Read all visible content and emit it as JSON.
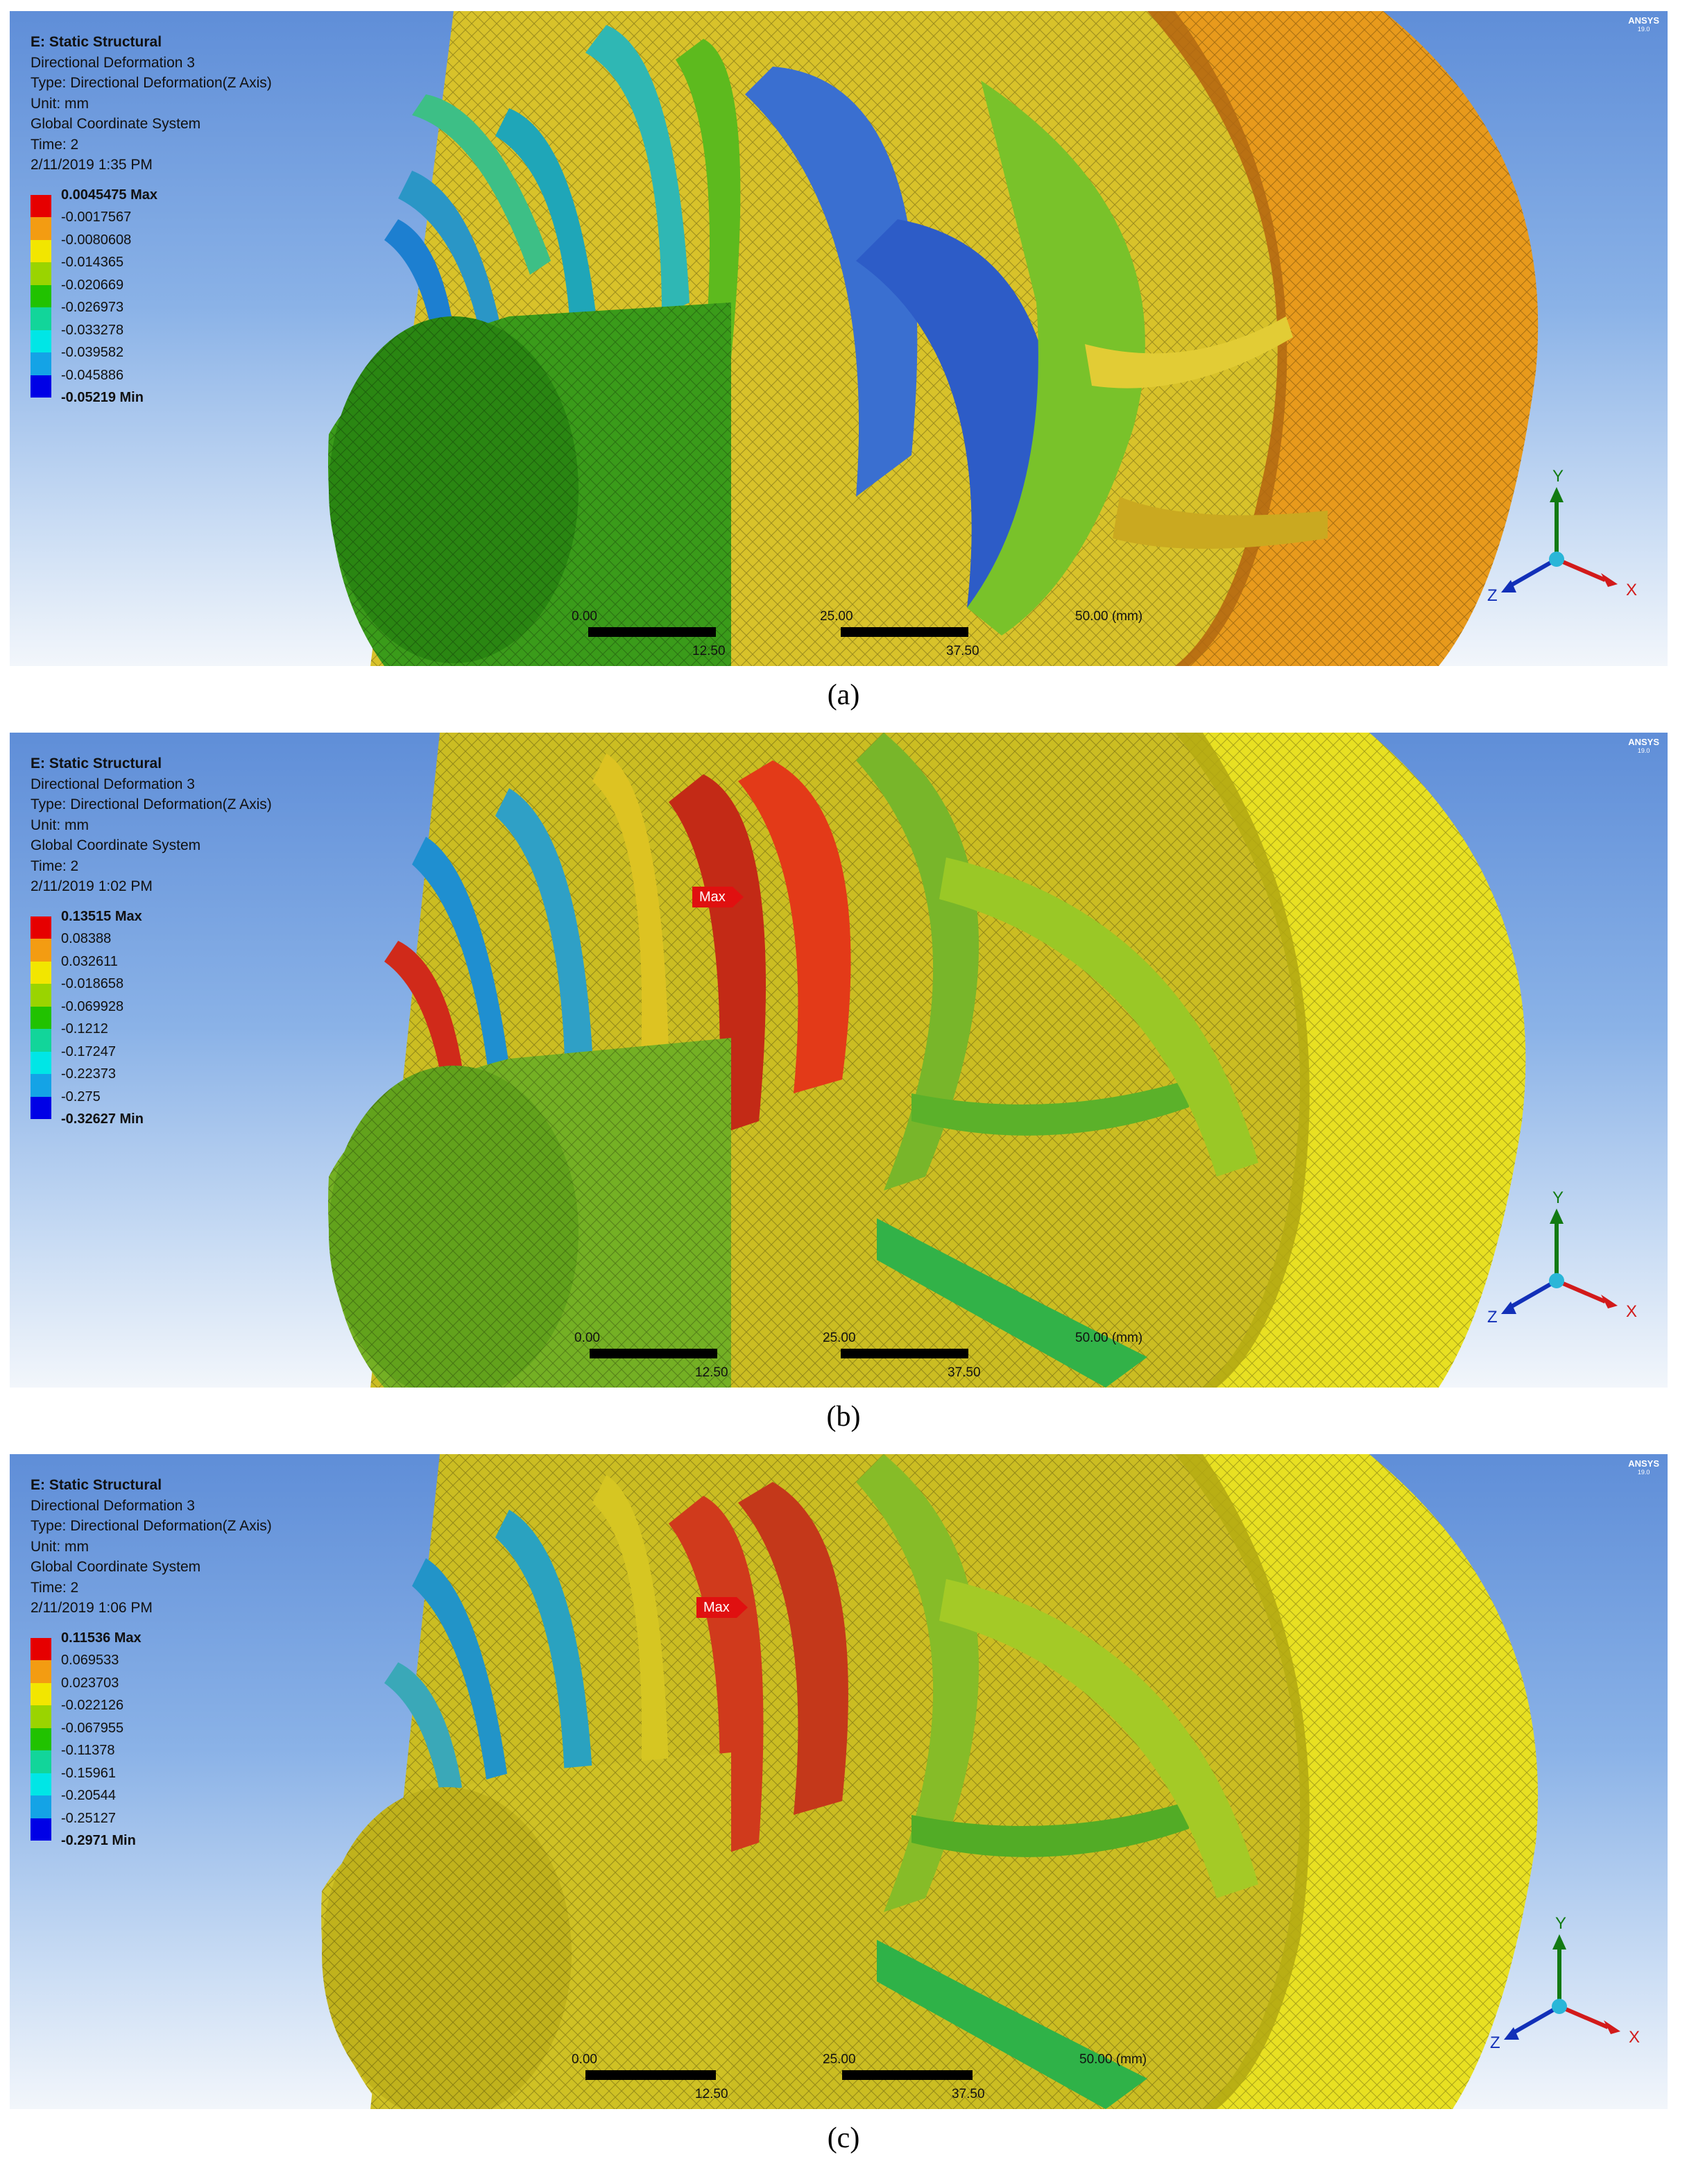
{
  "panels": [
    {
      "caption": "(a)",
      "header": {
        "title": "E: Static Structural",
        "result": "Directional Deformation 3",
        "type": "Type: Directional Deformation(Z Axis)",
        "unit": "Unit: mm",
        "coord": "Global Coordinate System",
        "time": "Time: 2",
        "date": "2/11/2019 1:35 PM"
      },
      "scale": {
        "max": "0.0045475 Max",
        "levels": [
          "-0.0017567",
          "-0.0080608",
          "-0.014365",
          "-0.020669",
          "-0.026973",
          "-0.033278",
          "-0.039582",
          "-0.045886"
        ],
        "min": "-0.05219 Min"
      },
      "max_label": "",
      "ruler": {
        "t0": "0.00",
        "t25": "25.00",
        "t50": "50.00 (mm)",
        "t125": "12.50",
        "t375": "37.50"
      },
      "axes": {
        "x": "X",
        "y": "Y",
        "z": "Z"
      }
    },
    {
      "caption": "(b)",
      "header": {
        "title": "E: Static Structural",
        "result": "Directional Deformation 3",
        "type": "Type: Directional Deformation(Z Axis)",
        "unit": "Unit: mm",
        "coord": "Global Coordinate System",
        "time": "Time: 2",
        "date": "2/11/2019 1:02 PM"
      },
      "scale": {
        "max": "0.13515 Max",
        "levels": [
          "0.08388",
          "0.032611",
          "-0.018658",
          "-0.069928",
          "-0.1212",
          "-0.17247",
          "-0.22373",
          "-0.275"
        ],
        "min": "-0.32627 Min"
      },
      "max_label": "Max",
      "ruler": {
        "t0": "0.00",
        "t25": "25.00",
        "t50": "50.00 (mm)",
        "t125": "12.50",
        "t375": "37.50"
      },
      "axes": {
        "x": "X",
        "y": "Y",
        "z": "Z"
      }
    },
    {
      "caption": "(c)",
      "header": {
        "title": "E: Static Structural",
        "result": "Directional Deformation 3",
        "type": "Type: Directional Deformation(Z Axis)",
        "unit": "Unit: mm",
        "coord": "Global Coordinate System",
        "time": "Time: 2",
        "date": "2/11/2019 1:06 PM"
      },
      "scale": {
        "max": "0.11536 Max",
        "levels": [
          "0.069533",
          "0.023703",
          "-0.022126",
          "-0.067955",
          "-0.11378",
          "-0.15961",
          "-0.20544",
          "-0.25127"
        ],
        "min": "-0.2971 Min"
      },
      "max_label": "Max",
      "ruler": {
        "t0": "0.00",
        "t25": "25.00",
        "t50": "50.00 (mm)",
        "t125": "12.50",
        "t375": "37.50"
      },
      "axes": {
        "x": "X",
        "y": "Y",
        "z": "Z"
      }
    }
  ],
  "logo": {
    "name": "ANSYS",
    "version": "19.0"
  },
  "legend_colors": [
    "#e60000",
    "#f39c12",
    "#f2e600",
    "#9ad400",
    "#21c200",
    "#12d59a",
    "#00e6e6",
    "#14a3e6",
    "#0000e6"
  ]
}
